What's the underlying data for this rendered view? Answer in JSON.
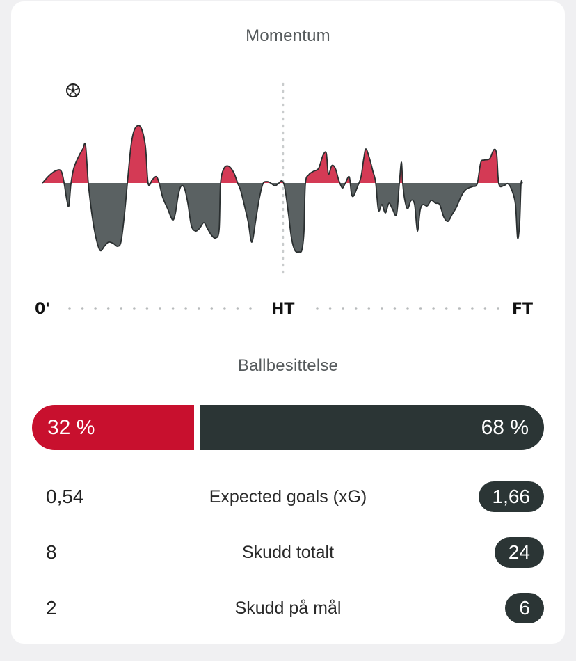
{
  "momentum": {
    "title": "Momentum",
    "labels": {
      "start": "0'",
      "half": "HT",
      "end": "FT"
    },
    "goal_icon": "soccer-ball-icon",
    "colors": {
      "home": "#d43a55",
      "away": "#5a6162"
    }
  },
  "possession": {
    "title": "Ballbesittelse",
    "home_label": "32 %",
    "away_label": "68 %",
    "home_value": 32,
    "away_value": 68,
    "home_color": "#c8102e",
    "away_color": "#2b3535"
  },
  "stats": [
    {
      "label": "Expected goals (xG)",
      "home": "0,54",
      "away": "1,66"
    },
    {
      "label": "Skudd totalt",
      "home": "8",
      "away": "24"
    },
    {
      "label": "Skudd på mål",
      "home": "2",
      "away": "6"
    }
  ]
}
